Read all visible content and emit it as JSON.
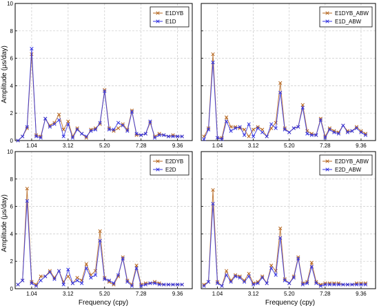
{
  "colors": {
    "series1": "#b5651d",
    "series2": "#3030e0",
    "grid": "#c8c8c8"
  },
  "marker": "x",
  "chart_data": [
    {
      "type": "line",
      "xlabel": "",
      "ylabel": "Amplitude (μs/day)",
      "xticks": [
        1.04,
        3.12,
        5.2,
        7.28,
        9.36
      ],
      "xtick_labels": [
        "1.04",
        "3.12",
        "5.20",
        "7.28",
        "9.36"
      ],
      "yticks": [
        0,
        2,
        4,
        6,
        8,
        10
      ],
      "ytick_labels": [
        "0",
        "2",
        "4",
        "6",
        "8",
        "10"
      ],
      "xlim": [
        0.1,
        10.2
      ],
      "ylim": [
        0,
        10
      ],
      "grid": true,
      "legend_position": "top-right",
      "x": [
        0.26,
        0.52,
        0.78,
        1.04,
        1.3,
        1.56,
        1.82,
        2.08,
        2.34,
        2.6,
        2.86,
        3.12,
        3.38,
        3.64,
        3.9,
        4.16,
        4.42,
        4.68,
        4.94,
        5.2,
        5.46,
        5.72,
        5.98,
        6.24,
        6.5,
        6.76,
        7.02,
        7.28,
        7.54,
        7.8,
        8.06,
        8.32,
        8.58,
        8.84,
        9.1,
        9.36,
        9.62
      ],
      "series": [
        {
          "name": "E1DYB",
          "values": [
            0.0,
            0.3,
            0.9,
            6.3,
            0.4,
            0.3,
            1.6,
            1.1,
            1.3,
            1.9,
            0.8,
            1.4,
            0.3,
            0.9,
            0.5,
            0.2,
            0.8,
            0.9,
            1.2,
            3.7,
            0.9,
            0.7,
            0.9,
            1.2,
            0.8,
            2.2,
            0.4,
            0.4,
            0.5,
            1.3,
            0.3,
            0.5,
            0.4,
            0.3,
            0.4,
            0.3,
            0.3
          ]
        },
        {
          "name": "E1D",
          "values": [
            0.0,
            0.3,
            1.0,
            6.7,
            0.3,
            0.2,
            1.6,
            1.0,
            1.2,
            1.5,
            0.3,
            1.2,
            0.2,
            0.8,
            0.5,
            0.3,
            0.7,
            0.8,
            1.3,
            3.6,
            0.8,
            0.8,
            1.3,
            1.1,
            0.7,
            2.1,
            0.5,
            0.4,
            0.5,
            1.4,
            0.2,
            0.4,
            0.4,
            0.3,
            0.3,
            0.3,
            0.3
          ]
        }
      ]
    },
    {
      "type": "line",
      "xlabel": "",
      "ylabel": "",
      "xticks": [
        1.04,
        3.12,
        5.2,
        7.28,
        9.36
      ],
      "xtick_labels": [
        "1.04",
        "3.12",
        "5.20",
        "7.28",
        "9.36"
      ],
      "yticks": [
        0,
        2,
        4,
        6,
        8,
        10
      ],
      "ytick_labels": [
        "",
        "",
        "",
        "",
        "",
        ""
      ],
      "xlim": [
        0.1,
        10.2
      ],
      "ylim": [
        0,
        10
      ],
      "grid": true,
      "legend_position": "top-right",
      "x": [
        0.26,
        0.52,
        0.78,
        1.04,
        1.3,
        1.56,
        1.82,
        2.08,
        2.34,
        2.6,
        2.86,
        3.12,
        3.38,
        3.64,
        3.9,
        4.16,
        4.42,
        4.68,
        4.94,
        5.2,
        5.46,
        5.72,
        5.98,
        6.24,
        6.5,
        6.76,
        7.02,
        7.28,
        7.54,
        7.8,
        8.06,
        8.32,
        8.58,
        8.84,
        9.1,
        9.36,
        9.62
      ],
      "series": [
        {
          "name": "E1DYB_ABW",
          "values": [
            0.3,
            0.9,
            6.3,
            0.2,
            0.2,
            1.7,
            1.0,
            1.0,
            0.9,
            0.8,
            0.3,
            0.8,
            1.0,
            0.8,
            0.3,
            0.9,
            1.3,
            4.2,
            0.9,
            0.6,
            0.9,
            1.0,
            2.6,
            0.7,
            0.5,
            0.4,
            1.6,
            0.3,
            0.9,
            0.7,
            0.6,
            1.1,
            0.7,
            0.7,
            1.0,
            0.7,
            0.5
          ]
        },
        {
          "name": "E1D_ABW",
          "values": [
            0.1,
            0.8,
            5.7,
            0.2,
            0.1,
            1.4,
            0.7,
            0.9,
            1.0,
            0.4,
            1.2,
            0.3,
            0.9,
            0.6,
            0.3,
            1.2,
            0.9,
            3.5,
            0.8,
            0.6,
            0.9,
            1.0,
            2.4,
            0.5,
            0.4,
            0.4,
            1.5,
            0.2,
            0.8,
            0.6,
            0.5,
            1.1,
            0.6,
            0.7,
            0.9,
            0.6,
            0.4
          ]
        }
      ]
    },
    {
      "type": "line",
      "xlabel": "Frequency (cpy)",
      "ylabel": "Amplitude (μs/day)",
      "xticks": [
        1.04,
        3.12,
        5.2,
        7.28,
        9.36
      ],
      "xtick_labels": [
        "1.04",
        "3.12",
        "5.20",
        "7.28",
        "9.36"
      ],
      "yticks": [
        0,
        2,
        4,
        6,
        8,
        10
      ],
      "ytick_labels": [
        "0",
        "2",
        "4",
        "6",
        "8",
        "10"
      ],
      "xlim": [
        0.1,
        10.2
      ],
      "ylim": [
        0,
        10
      ],
      "grid": true,
      "legend_position": "top-right",
      "x": [
        0.26,
        0.52,
        0.78,
        1.04,
        1.3,
        1.56,
        1.82,
        2.08,
        2.34,
        2.6,
        2.86,
        3.12,
        3.38,
        3.64,
        3.9,
        4.16,
        4.42,
        4.68,
        4.94,
        5.2,
        5.46,
        5.72,
        5.98,
        6.24,
        6.5,
        6.76,
        7.02,
        7.28,
        7.54,
        7.8,
        8.06,
        8.32,
        8.58,
        8.84,
        9.1,
        9.36,
        9.62
      ],
      "series": [
        {
          "name": "E2DYB",
          "values": [
            0.3,
            0.6,
            7.3,
            0.5,
            0.3,
            0.9,
            0.9,
            1.3,
            0.8,
            1.3,
            0.5,
            0.9,
            0.4,
            0.8,
            0.6,
            1.8,
            1.0,
            1.3,
            4.2,
            0.8,
            0.5,
            0.3,
            0.9,
            2.3,
            0.6,
            0.3,
            1.7,
            0.3,
            0.4,
            0.4,
            0.5,
            0.4,
            0.3,
            0.3,
            0.3,
            0.3,
            0.3
          ]
        },
        {
          "name": "E2D",
          "values": [
            0.3,
            0.6,
            6.4,
            0.4,
            0.2,
            0.6,
            0.9,
            1.2,
            0.7,
            1.3,
            0.3,
            1.4,
            0.4,
            0.6,
            0.4,
            1.5,
            0.8,
            1.0,
            3.5,
            0.7,
            0.6,
            0.4,
            1.0,
            2.2,
            0.5,
            0.2,
            1.5,
            0.2,
            0.3,
            0.4,
            0.4,
            0.3,
            0.3,
            0.3,
            0.3,
            0.3,
            0.3
          ]
        }
      ]
    },
    {
      "type": "line",
      "xlabel": "Frequency (cpy)",
      "ylabel": "",
      "xticks": [
        1.04,
        3.12,
        5.2,
        7.28,
        9.36
      ],
      "xtick_labels": [
        "1.04",
        "3.12",
        "5.20",
        "7.28",
        "9.36"
      ],
      "yticks": [
        0,
        2,
        4,
        6,
        8,
        10
      ],
      "ytick_labels": [
        "",
        "",
        "",
        "",
        "",
        ""
      ],
      "xlim": [
        0.1,
        10.2
      ],
      "ylim": [
        0,
        10
      ],
      "grid": true,
      "legend_position": "top-right",
      "x": [
        0.26,
        0.52,
        0.78,
        1.04,
        1.3,
        1.56,
        1.82,
        2.08,
        2.34,
        2.6,
        2.86,
        3.12,
        3.38,
        3.64,
        3.9,
        4.16,
        4.42,
        4.68,
        4.94,
        5.2,
        5.46,
        5.72,
        5.98,
        6.24,
        6.5,
        6.76,
        7.02,
        7.28,
        7.54,
        7.8,
        8.06,
        8.32,
        8.58,
        8.84,
        9.1,
        9.36,
        9.62
      ],
      "series": [
        {
          "name": "E2DYB_ABW",
          "values": [
            0.3,
            0.5,
            7.2,
            0.5,
            0.2,
            1.3,
            0.6,
            1.0,
            0.9,
            0.6,
            1.1,
            0.4,
            0.5,
            0.9,
            0.4,
            1.7,
            1.3,
            4.4,
            0.7,
            0.4,
            0.9,
            2.3,
            0.4,
            0.5,
            1.9,
            0.5,
            0.3,
            0.4,
            0.4,
            0.4,
            0.4,
            0.3,
            0.3,
            0.3,
            0.4,
            0.4,
            0.4
          ]
        },
        {
          "name": "E2D_ABW",
          "values": [
            0.2,
            0.5,
            6.2,
            0.4,
            0.2,
            1.0,
            0.5,
            0.9,
            0.8,
            0.5,
            0.9,
            0.3,
            0.4,
            0.8,
            0.4,
            1.5,
            1.0,
            3.7,
            0.6,
            0.4,
            0.8,
            2.2,
            0.3,
            0.4,
            1.6,
            0.4,
            0.2,
            0.3,
            0.3,
            0.3,
            0.3,
            0.3,
            0.3,
            0.3,
            0.3,
            0.3,
            0.3
          ]
        }
      ]
    }
  ]
}
